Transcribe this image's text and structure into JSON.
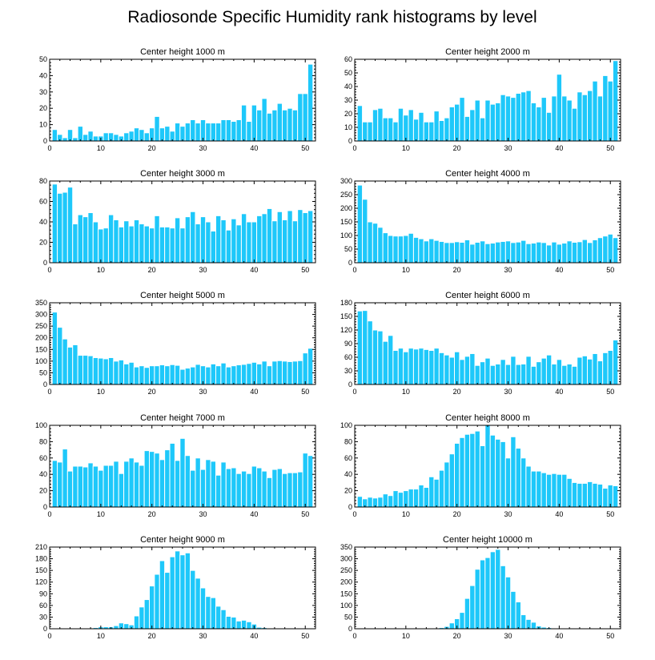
{
  "figure": {
    "title": "Radiosonde Specific Humidity rank histograms by level"
  },
  "colors": {
    "bar": "#1ec8fa",
    "bar_stroke": "#ffffff",
    "axis": "#000000"
  },
  "chart_data": [
    {
      "type": "bar",
      "title": "Center height 1000 m",
      "x": [
        1,
        2,
        3,
        4,
        5,
        6,
        7,
        8,
        9,
        10,
        11,
        12,
        13,
        14,
        15,
        16,
        17,
        18,
        19,
        20,
        21,
        22,
        23,
        24,
        25,
        26,
        27,
        28,
        29,
        30,
        31,
        32,
        33,
        34,
        35,
        36,
        37,
        38,
        39,
        40,
        41,
        42,
        43,
        44,
        45,
        46,
        47,
        48,
        49,
        50,
        51
      ],
      "values": [
        7,
        4,
        2,
        7,
        2,
        9,
        4,
        6,
        3,
        3,
        5,
        5,
        4,
        3,
        5,
        6,
        8,
        7,
        5,
        8,
        15,
        8,
        9,
        6,
        11,
        9,
        11,
        13,
        11,
        13,
        11,
        11,
        11,
        13,
        13,
        12,
        13,
        22,
        12,
        22,
        19,
        26,
        17,
        19,
        23,
        19,
        20,
        19,
        29,
        29,
        47
      ],
      "xlim": [
        0,
        52
      ],
      "ylim": [
        0,
        50
      ],
      "xticks": [
        0,
        10,
        20,
        30,
        40,
        50
      ],
      "yticks": [
        0,
        10,
        20,
        30,
        40,
        50
      ]
    },
    {
      "type": "bar",
      "title": "Center height 2000 m",
      "x": [
        1,
        2,
        3,
        4,
        5,
        6,
        7,
        8,
        9,
        10,
        11,
        12,
        13,
        14,
        15,
        16,
        17,
        18,
        19,
        20,
        21,
        22,
        23,
        24,
        25,
        26,
        27,
        28,
        29,
        30,
        31,
        32,
        33,
        34,
        35,
        36,
        37,
        38,
        39,
        40,
        41,
        42,
        43,
        44,
        45,
        46,
        47,
        48,
        49,
        50,
        51
      ],
      "values": [
        26,
        14,
        14,
        23,
        24,
        17,
        17,
        14,
        24,
        19,
        23,
        16,
        21,
        14,
        14,
        22,
        15,
        17,
        25,
        27,
        32,
        18,
        23,
        30,
        17,
        30,
        27,
        28,
        34,
        33,
        32,
        35,
        36,
        37,
        28,
        25,
        32,
        21,
        33,
        49,
        33,
        30,
        24,
        36,
        34,
        37,
        44,
        33,
        48,
        44,
        59
      ],
      "xlim": [
        0,
        52
      ],
      "ylim": [
        0,
        60
      ],
      "xticks": [
        0,
        10,
        20,
        30,
        40,
        50
      ],
      "yticks": [
        0,
        10,
        20,
        30,
        40,
        50,
        60
      ]
    },
    {
      "type": "bar",
      "title": "Center height 3000 m",
      "x": [
        1,
        2,
        3,
        4,
        5,
        6,
        7,
        8,
        9,
        10,
        11,
        12,
        13,
        14,
        15,
        16,
        17,
        18,
        19,
        20,
        21,
        22,
        23,
        24,
        25,
        26,
        27,
        28,
        29,
        30,
        31,
        32,
        33,
        34,
        35,
        36,
        37,
        38,
        39,
        40,
        41,
        42,
        43,
        44,
        45,
        46,
        47,
        48,
        49,
        50,
        51
      ],
      "values": [
        77,
        68,
        69,
        74,
        38,
        47,
        45,
        49,
        40,
        33,
        34,
        47,
        42,
        35,
        41,
        36,
        42,
        38,
        36,
        34,
        46,
        35,
        35,
        34,
        44,
        34,
        45,
        50,
        38,
        45,
        40,
        31,
        46,
        42,
        32,
        43,
        37,
        48,
        40,
        40,
        46,
        48,
        53,
        41,
        50,
        42,
        51,
        41,
        52,
        49,
        51
      ],
      "xlim": [
        0,
        52
      ],
      "ylim": [
        0,
        80
      ],
      "xticks": [
        0,
        10,
        20,
        30,
        40,
        50
      ],
      "yticks": [
        0,
        20,
        40,
        60,
        80
      ]
    },
    {
      "type": "bar",
      "title": "Center height 4000 m",
      "x": [
        1,
        2,
        3,
        4,
        5,
        6,
        7,
        8,
        9,
        10,
        11,
        12,
        13,
        14,
        15,
        16,
        17,
        18,
        19,
        20,
        21,
        22,
        23,
        24,
        25,
        26,
        27,
        28,
        29,
        30,
        31,
        32,
        33,
        34,
        35,
        36,
        37,
        38,
        39,
        40,
        41,
        42,
        43,
        44,
        45,
        46,
        47,
        48,
        49,
        50,
        51
      ],
      "values": [
        285,
        233,
        150,
        145,
        130,
        110,
        100,
        98,
        98,
        100,
        108,
        93,
        88,
        80,
        88,
        82,
        78,
        74,
        74,
        77,
        75,
        84,
        68,
        75,
        80,
        70,
        72,
        76,
        78,
        80,
        74,
        76,
        82,
        70,
        72,
        76,
        74,
        65,
        76,
        68,
        72,
        80,
        75,
        77,
        85,
        74,
        84,
        92,
        98,
        105,
        92
      ],
      "xlim": [
        0,
        52
      ],
      "ylim": [
        0,
        300
      ],
      "xticks": [
        0,
        10,
        20,
        30,
        40,
        50
      ],
      "yticks": [
        0,
        50,
        100,
        150,
        200,
        250,
        300
      ]
    },
    {
      "type": "bar",
      "title": "Center height 5000 m",
      "x": [
        1,
        2,
        3,
        4,
        5,
        6,
        7,
        8,
        9,
        10,
        11,
        12,
        13,
        14,
        15,
        16,
        17,
        18,
        19,
        20,
        21,
        22,
        23,
        24,
        25,
        26,
        27,
        28,
        29,
        30,
        31,
        32,
        33,
        34,
        35,
        36,
        37,
        38,
        39,
        40,
        41,
        42,
        43,
        44,
        45,
        46,
        47,
        48,
        49,
        50,
        51
      ],
      "values": [
        310,
        245,
        195,
        160,
        170,
        125,
        125,
        123,
        115,
        113,
        110,
        115,
        100,
        105,
        88,
        95,
        75,
        80,
        73,
        80,
        80,
        84,
        80,
        85,
        82,
        65,
        70,
        75,
        86,
        80,
        75,
        88,
        80,
        92,
        75,
        80,
        84,
        86,
        90,
        95,
        88,
        100,
        80,
        100,
        102,
        100,
        98,
        100,
        102,
        135,
        155
      ],
      "xlim": [
        0,
        52
      ],
      "ylim": [
        0,
        350
      ],
      "xticks": [
        0,
        10,
        20,
        30,
        40,
        50
      ],
      "yticks": [
        0,
        50,
        100,
        150,
        200,
        250,
        300,
        350
      ]
    },
    {
      "type": "bar",
      "title": "Center height 6000 m",
      "x": [
        1,
        2,
        3,
        4,
        5,
        6,
        7,
        8,
        9,
        10,
        11,
        12,
        13,
        14,
        15,
        16,
        17,
        18,
        19,
        20,
        21,
        22,
        23,
        24,
        25,
        26,
        27,
        28,
        29,
        30,
        31,
        32,
        33,
        34,
        35,
        36,
        37,
        38,
        39,
        40,
        41,
        42,
        43,
        44,
        45,
        46,
        47,
        48,
        49,
        50,
        51
      ],
      "values": [
        162,
        163,
        140,
        120,
        118,
        95,
        108,
        75,
        80,
        72,
        80,
        78,
        80,
        77,
        75,
        80,
        70,
        65,
        60,
        72,
        55,
        62,
        68,
        42,
        50,
        58,
        42,
        45,
        55,
        44,
        62,
        44,
        45,
        62,
        40,
        50,
        58,
        65,
        45,
        55,
        42,
        45,
        40,
        60,
        63,
        56,
        68,
        52,
        70,
        75,
        98
      ],
      "xlim": [
        0,
        52
      ],
      "ylim": [
        0,
        180
      ],
      "xticks": [
        0,
        10,
        20,
        30,
        40,
        50
      ],
      "yticks": [
        0,
        30,
        60,
        90,
        120,
        150,
        180
      ]
    },
    {
      "type": "bar",
      "title": "Center height 7000 m",
      "x": [
        1,
        2,
        3,
        4,
        5,
        6,
        7,
        8,
        9,
        10,
        11,
        12,
        13,
        14,
        15,
        16,
        17,
        18,
        19,
        20,
        21,
        22,
        23,
        24,
        25,
        26,
        27,
        28,
        29,
        30,
        31,
        32,
        33,
        34,
        35,
        36,
        37,
        38,
        39,
        40,
        41,
        42,
        43,
        44,
        45,
        46,
        47,
        48,
        49,
        50,
        51
      ],
      "values": [
        57,
        55,
        71,
        44,
        50,
        50,
        49,
        54,
        50,
        45,
        51,
        51,
        56,
        41,
        56,
        60,
        55,
        51,
        69,
        68,
        66,
        58,
        70,
        78,
        57,
        84,
        63,
        45,
        60,
        46,
        58,
        56,
        39,
        55,
        47,
        48,
        41,
        44,
        41,
        50,
        48,
        44,
        36,
        46,
        47,
        41,
        42,
        42,
        43,
        66,
        63
      ],
      "xlim": [
        0,
        52
      ],
      "ylim": [
        0,
        100
      ],
      "xticks": [
        0,
        10,
        20,
        30,
        40,
        50
      ],
      "yticks": [
        0,
        20,
        40,
        60,
        80,
        100
      ]
    },
    {
      "type": "bar",
      "title": "Center height 8000 m",
      "x": [
        1,
        2,
        3,
        4,
        5,
        6,
        7,
        8,
        9,
        10,
        11,
        12,
        13,
        14,
        15,
        16,
        17,
        18,
        19,
        20,
        21,
        22,
        23,
        24,
        25,
        26,
        27,
        28,
        29,
        30,
        31,
        32,
        33,
        34,
        35,
        36,
        37,
        38,
        39,
        40,
        41,
        42,
        43,
        44,
        45,
        46,
        47,
        48,
        49,
        50,
        51
      ],
      "values": [
        13,
        10,
        12,
        11,
        12,
        16,
        14,
        20,
        18,
        20,
        22,
        22,
        27,
        24,
        37,
        34,
        45,
        55,
        65,
        78,
        85,
        89,
        90,
        93,
        75,
        100,
        88,
        83,
        80,
        60,
        86,
        72,
        60,
        50,
        44,
        44,
        42,
        40,
        41,
        40,
        40,
        35,
        30,
        29,
        29,
        31,
        29,
        28,
        23,
        27,
        26
      ],
      "xlim": [
        0,
        52
      ],
      "ylim": [
        0,
        100
      ],
      "xticks": [
        0,
        10,
        20,
        30,
        40,
        50
      ],
      "yticks": [
        0,
        20,
        40,
        60,
        80,
        100
      ]
    },
    {
      "type": "bar",
      "title": "Center height 9000 m",
      "x": [
        1,
        2,
        3,
        4,
        5,
        6,
        7,
        8,
        9,
        10,
        11,
        12,
        13,
        14,
        15,
        16,
        17,
        18,
        19,
        20,
        21,
        22,
        23,
        24,
        25,
        26,
        27,
        28,
        29,
        30,
        31,
        32,
        33,
        34,
        35,
        36,
        37,
        38,
        39,
        40,
        41,
        42,
        43,
        44,
        45,
        46,
        47,
        48,
        49,
        50,
        51
      ],
      "values": [
        1,
        1,
        1,
        1,
        1,
        1,
        1,
        2,
        3,
        5,
        5,
        5,
        8,
        15,
        13,
        10,
        33,
        56,
        75,
        110,
        140,
        175,
        145,
        185,
        200,
        190,
        195,
        150,
        130,
        105,
        83,
        80,
        58,
        49,
        32,
        30,
        20,
        22,
        18,
        12,
        4,
        3,
        2,
        1,
        1,
        1,
        1,
        1,
        1,
        1,
        1
      ],
      "xlim": [
        0,
        52
      ],
      "ylim": [
        0,
        210
      ],
      "xticks": [
        0,
        10,
        20,
        30,
        40,
        50
      ],
      "yticks": [
        0,
        30,
        60,
        90,
        120,
        150,
        180,
        210
      ]
    },
    {
      "type": "bar",
      "title": "Center height 10000 m",
      "x": [
        1,
        2,
        3,
        4,
        5,
        6,
        7,
        8,
        9,
        10,
        11,
        12,
        13,
        14,
        15,
        16,
        17,
        18,
        19,
        20,
        21,
        22,
        23,
        24,
        25,
        26,
        27,
        28,
        29,
        30,
        31,
        32,
        33,
        34,
        35,
        36,
        37,
        38,
        39,
        40,
        41,
        42,
        43,
        44,
        45,
        46,
        47,
        48,
        49,
        50,
        51
      ],
      "values": [
        1,
        1,
        1,
        1,
        1,
        1,
        1,
        1,
        1,
        1,
        1,
        1,
        1,
        1,
        1,
        2,
        5,
        10,
        25,
        43,
        70,
        130,
        185,
        255,
        295,
        305,
        330,
        340,
        270,
        222,
        160,
        115,
        60,
        40,
        28,
        12,
        7,
        5,
        2,
        2,
        2,
        2,
        2,
        2,
        2,
        1,
        1,
        1,
        1,
        1,
        1
      ],
      "xlim": [
        0,
        52
      ],
      "ylim": [
        0,
        350
      ],
      "xticks": [
        0,
        10,
        20,
        30,
        40,
        50
      ],
      "yticks": [
        0,
        50,
        100,
        150,
        200,
        250,
        300,
        350
      ]
    }
  ]
}
